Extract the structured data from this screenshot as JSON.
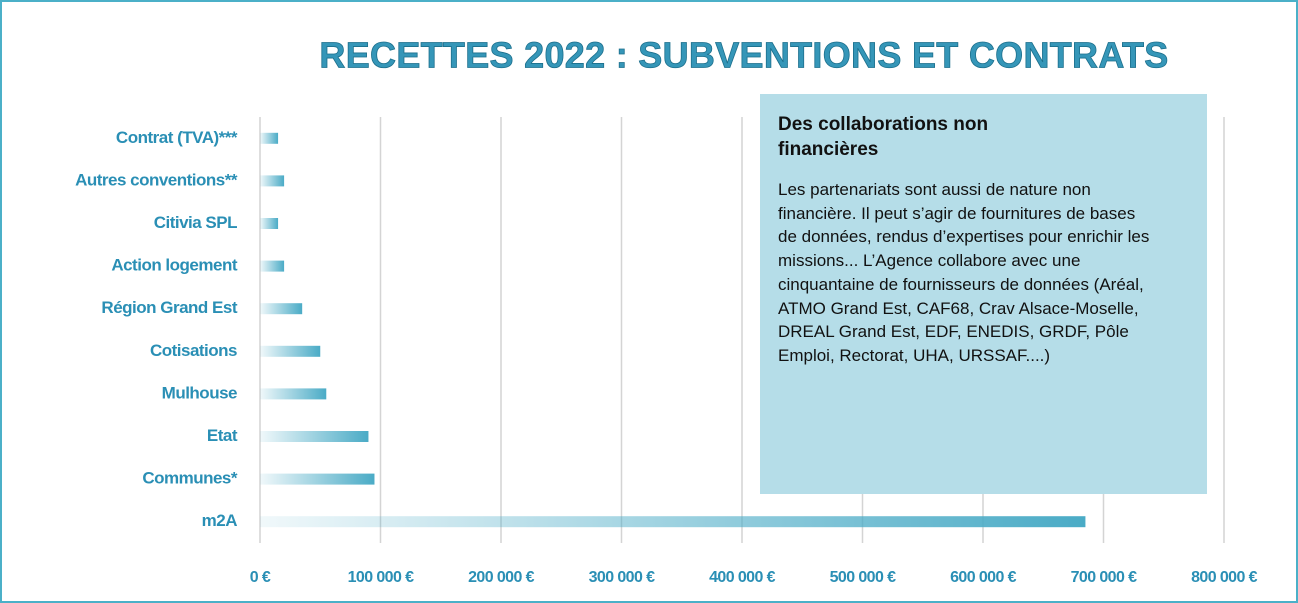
{
  "chart_data": {
    "type": "hbar",
    "title": "RECETTES 2022 : SUBVENTIONS ET CONTRATS",
    "categories": [
      "Contrat (TVA)***",
      "Autres conventions**",
      "Citivia SPL",
      "Action logement",
      "Région Grand Est",
      "Cotisations",
      "Mulhouse",
      "Etat",
      "Communes*",
      "m2A"
    ],
    "values": [
      15000,
      20000,
      15000,
      20000,
      35000,
      50000,
      55000,
      90000,
      95000,
      685000
    ],
    "color": "#4aabc6",
    "xlim": [
      0,
      800000
    ],
    "xticks": [
      {
        "value": 0,
        "label": "0 €"
      },
      {
        "value": 100000,
        "label": "100 000 €"
      },
      {
        "value": 200000,
        "label": "200 000 €"
      },
      {
        "value": 300000,
        "label": "300 000 €"
      },
      {
        "value": 400000,
        "label": "400 000 €"
      },
      {
        "value": 500000,
        "label": "500 000 €"
      },
      {
        "value": 600000,
        "label": "600 000 €"
      },
      {
        "value": 700000,
        "label": "700 000 €"
      },
      {
        "value": 800000,
        "label": "800 000 €"
      }
    ],
    "grid": true,
    "annotation": {
      "title": "Des collaborations non financières",
      "text": "Les partenariats sont aussi de nature non financière. Il peut s’agir de fournitures de bases de données, rendus d’expertises pour enrichir les missions... L’Agence collabore avec une cinquantaine de fournisseurs de données (Aréal, ATMO Grand Est, CAF68, Crav Alsace-Moselle, DREAL Grand Est, EDF, ENEDIS, GRDF, Pôle Emploi, Rectorat, UHA, URSSAF....)"
    }
  }
}
